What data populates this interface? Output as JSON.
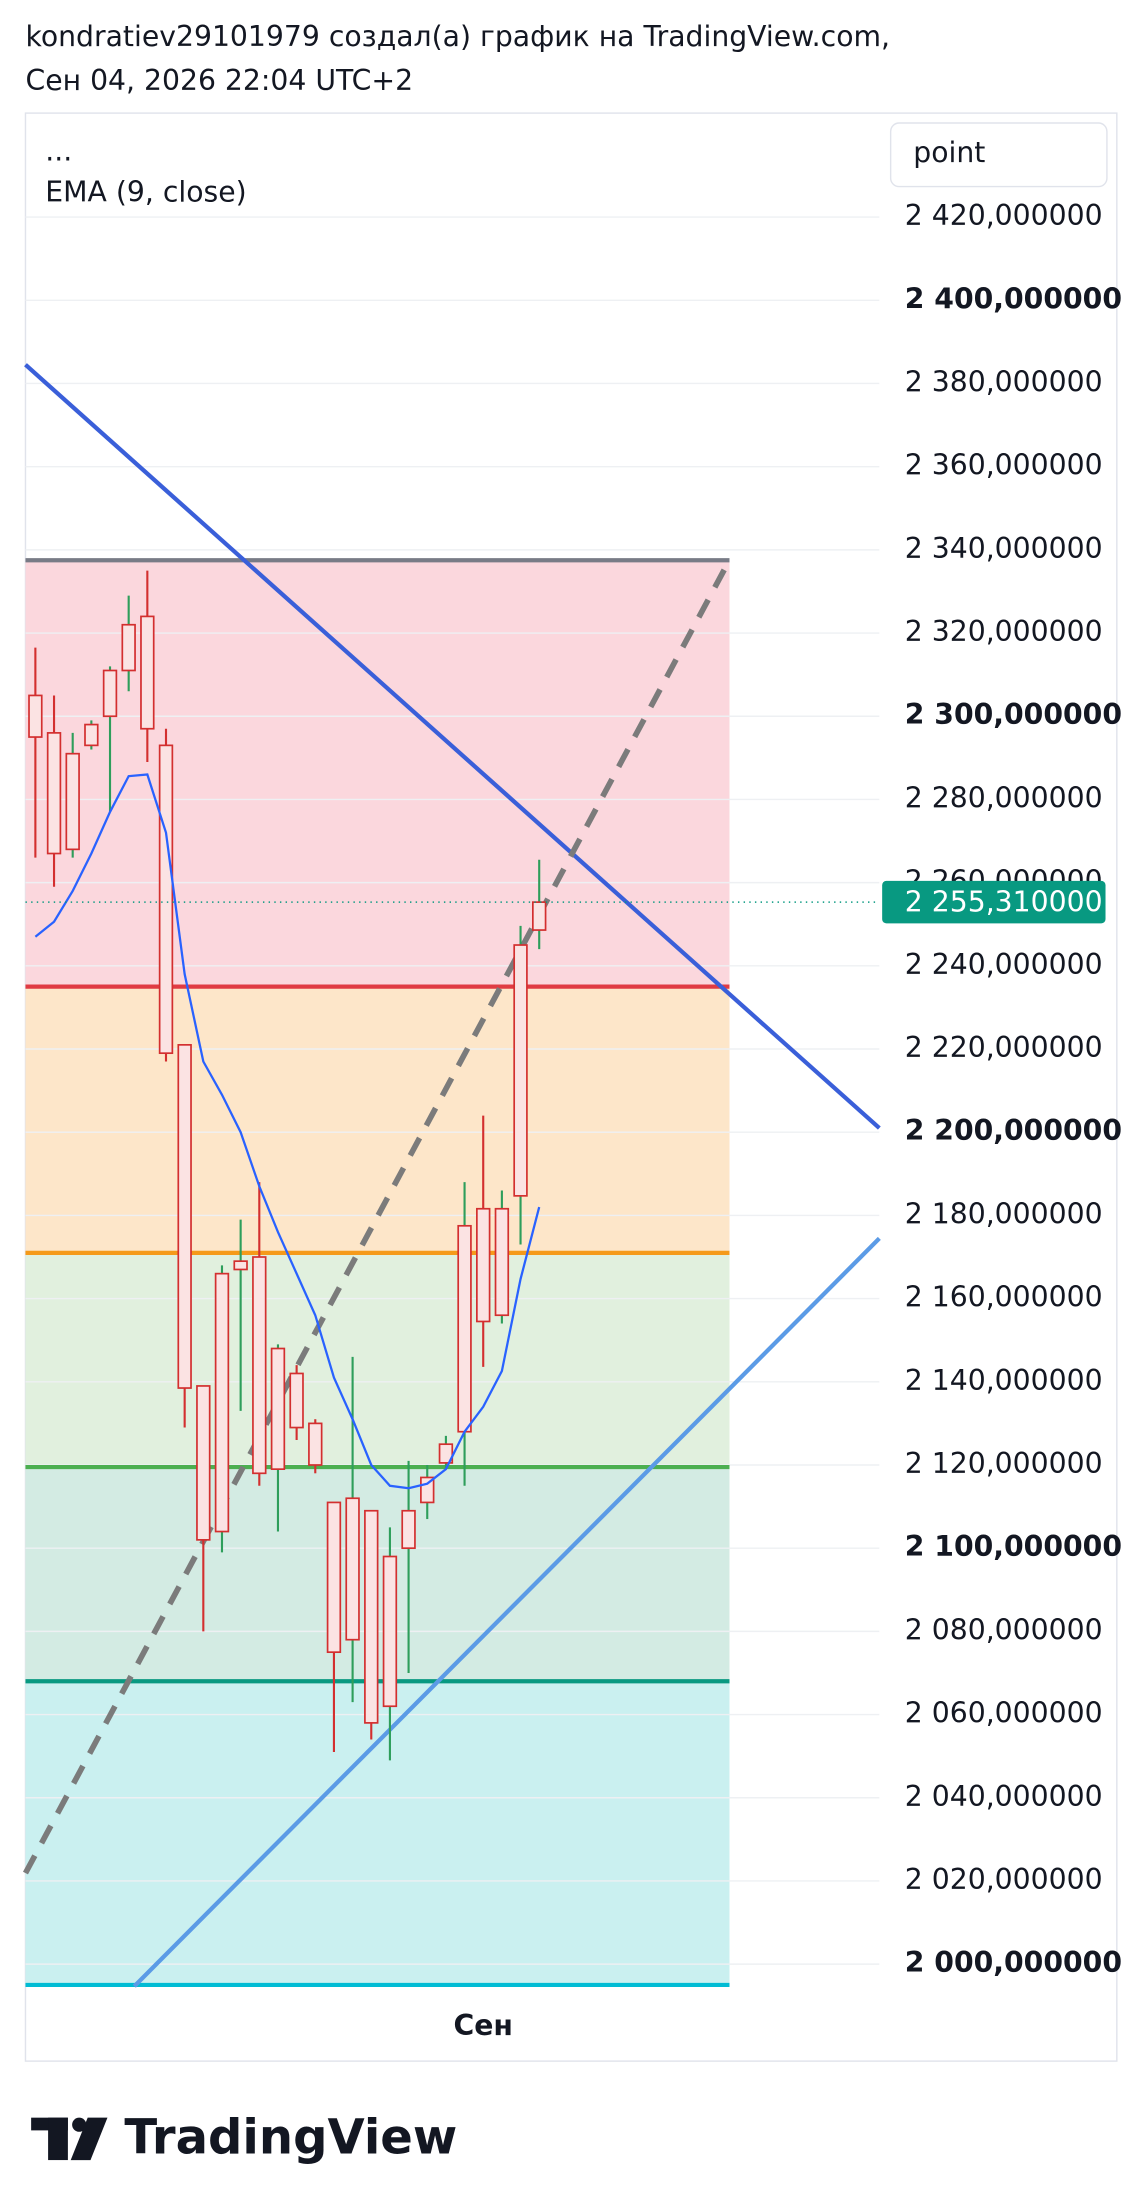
{
  "header": {
    "line1": "kondratiev29101979 создал(а) график на TradingView.com,",
    "line2": "Сен 04, 2026 22:04 UTC+2"
  },
  "footer": {
    "brand": "TradingView"
  },
  "chart_data": {
    "type": "candlestick",
    "legend_header": "...",
    "unit_label": "point",
    "categories": [
      null,
      null,
      null,
      null,
      null,
      null,
      null,
      null,
      null,
      null,
      null,
      null,
      null,
      null,
      null,
      null,
      null,
      null,
      null,
      null,
      null,
      null,
      null,
      null,
      "Сен",
      null,
      null,
      null
    ],
    "open": [
      2305,
      2296,
      2268,
      2293,
      2300,
      2311,
      2324,
      2293,
      2221,
      2139,
      2104,
      2167,
      2170,
      2119,
      2142,
      2130,
      2111,
      2078,
      2109,
      2062,
      2100,
      2111,
      2120.5,
      2128,
      2181.6,
      2156,
      2184.7,
      2248.6
    ],
    "high": [
      2316.5,
      2305,
      2296,
      2299,
      2312,
      2329,
      2335,
      2297,
      2221,
      2139,
      2168,
      2179,
      2188,
      2149,
      2144,
      2131,
      2111,
      2146,
      2109,
      2105,
      2121,
      2120,
      2127,
      2188,
      2204,
      2186,
      2249.6,
      2265.5
    ],
    "low": [
      2266,
      2259,
      2266,
      2292,
      2277,
      2306,
      2289,
      2217,
      2129,
      2080,
      2099,
      2133,
      2115,
      2104,
      2126,
      2118,
      2051,
      2063,
      2054,
      2049,
      2070,
      2107,
      2119,
      2115,
      2143.6,
      2154,
      2173,
      2244
    ],
    "close": [
      2295,
      2267,
      2291,
      2298,
      2311,
      2322,
      2297,
      2219,
      2138.5,
      2102,
      2166,
      2169,
      2118,
      2148,
      2129,
      2120,
      2075,
      2112,
      2058,
      2098,
      2109,
      2117,
      2125,
      2177.5,
      2154.5,
      2181.6,
      2245,
      2255.31
    ],
    "up_color": "#2e9e5b",
    "down_color": "#d32f2f",
    "body_fill": "#fbe3e3",
    "ema": {
      "name": "EMA (9, close)",
      "color": "#2962ff",
      "values": [
        2247,
        2250.6,
        2258,
        2267,
        2277,
        2285.6,
        2286,
        2272,
        2238,
        2217,
        2209,
        2200,
        2187,
        2176,
        2166,
        2156,
        2141,
        2131,
        2120,
        2115,
        2114.4,
        2115.5,
        2119,
        2128,
        2134,
        2142.6,
        2164.7,
        2182
      ]
    },
    "levels": [
      {
        "value": 2337.5,
        "color": "#787b86",
        "zone_color": "#fbd7dd"
      },
      {
        "value": 2235,
        "color": "#e03b43",
        "zone_color": "#fde6c9"
      },
      {
        "value": 2171,
        "color": "#f59a1a",
        "zone_color": "#e1f0de"
      },
      {
        "value": 2119.5,
        "color": "#4caf50",
        "zone_color": "#d3ebe3"
      },
      {
        "value": 2068,
        "color": "#089981",
        "zone_color": "#caf0f0"
      },
      {
        "value": 1995,
        "color": "#00bcd4"
      }
    ],
    "last_price": {
      "value": 2255.31,
      "label": "2 255,310000",
      "color": "#089981"
    },
    "ylim": [
      1993,
      2445
    ],
    "yticks": [
      {
        "value": 2000,
        "label": "2 000,000000"
      },
      {
        "value": 2020,
        "label": "2 020,000000"
      },
      {
        "value": 2040,
        "label": "2 040,000000"
      },
      {
        "value": 2060,
        "label": "2 060,000000"
      },
      {
        "value": 2080,
        "label": "2 080,000000"
      },
      {
        "value": 2100,
        "label": "2 100,000000"
      },
      {
        "value": 2120,
        "label": "2 120,000000"
      },
      {
        "value": 2140,
        "label": "2 140,000000"
      },
      {
        "value": 2160,
        "label": "2 160,000000"
      },
      {
        "value": 2180,
        "label": "2 180,000000"
      },
      {
        "value": 2200,
        "label": "2 200,000000"
      },
      {
        "value": 2220,
        "label": "2 220,000000"
      },
      {
        "value": 2240,
        "label": "2 240,000000"
      },
      {
        "value": 2260,
        "label": "2 260,000000"
      },
      {
        "value": 2280,
        "label": "2 280,000000"
      },
      {
        "value": 2300,
        "label": "2 300,000000"
      },
      {
        "value": 2320,
        "label": "2 320,000000"
      },
      {
        "value": 2340,
        "label": "2 340,000000"
      },
      {
        "value": 2360,
        "label": "2 360,000000"
      },
      {
        "value": 2380,
        "label": "2 380,000000"
      },
      {
        "value": 2400,
        "label": "2 400,000000"
      },
      {
        "value": 2420,
        "label": "2 420,000000"
      }
    ],
    "grid": true
  }
}
